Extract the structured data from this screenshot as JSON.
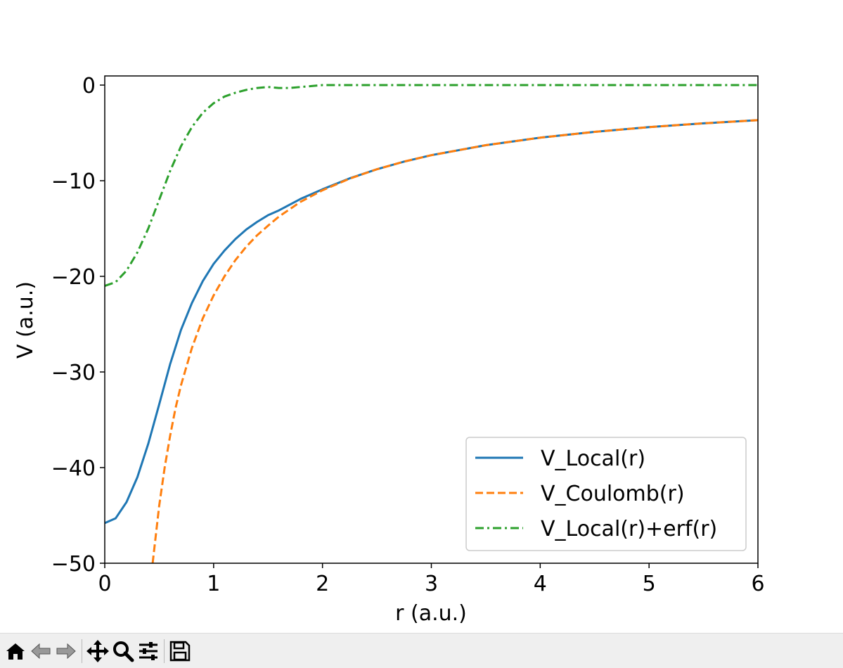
{
  "chart_data": {
    "type": "line",
    "xlabel": "r (a.u.)",
    "ylabel": "V (a.u.)",
    "xlim": [
      0,
      6
    ],
    "ylim": [
      -50,
      1
    ],
    "xticks": [
      0,
      1,
      2,
      3,
      4,
      5,
      6
    ],
    "xtick_labels": [
      "0",
      "1",
      "2",
      "3",
      "4",
      "5",
      "6"
    ],
    "yticks": [
      0,
      -10,
      -20,
      -30,
      -40,
      -50
    ],
    "ytick_labels": [
      "0",
      "−10",
      "−20",
      "−30",
      "−40",
      "−50"
    ],
    "grid": false,
    "legend_position": "lower-right",
    "series": [
      {
        "name": "V_Local(r)",
        "color": "#1f77b4",
        "style": "solid",
        "x": [
          0.0,
          0.1,
          0.2,
          0.3,
          0.4,
          0.5,
          0.6,
          0.7,
          0.8,
          0.9,
          1.0,
          1.1,
          1.2,
          1.3,
          1.4,
          1.5,
          1.6,
          1.8,
          2.0,
          2.25,
          2.5,
          2.75,
          3.0,
          3.5,
          4.0,
          4.5,
          5.0,
          5.5,
          6.0
        ],
        "y": [
          -45.8,
          -45.3,
          -43.6,
          -41.0,
          -37.5,
          -33.4,
          -29.2,
          -25.6,
          -22.8,
          -20.5,
          -18.7,
          -17.3,
          -16.1,
          -15.1,
          -14.3,
          -13.6,
          -13.1,
          -11.9,
          -10.9,
          -9.75,
          -8.8,
          -8.0,
          -7.33,
          -6.29,
          -5.5,
          -4.89,
          -4.4,
          -4.0,
          -3.67
        ]
      },
      {
        "name": "V_Coulomb(r)",
        "color": "#ff7f0e",
        "style": "dashed",
        "x": [
          0.44,
          0.5,
          0.55,
          0.6,
          0.65,
          0.7,
          0.8,
          0.9,
          1.0,
          1.1,
          1.2,
          1.3,
          1.4,
          1.5,
          1.6,
          1.8,
          2.0,
          2.25,
          2.5,
          2.75,
          3.0,
          3.5,
          4.0,
          4.5,
          5.0,
          5.5,
          6.0
        ],
        "y": [
          -50.0,
          -44.0,
          -40.0,
          -36.7,
          -33.8,
          -31.4,
          -27.5,
          -24.4,
          -22.0,
          -20.0,
          -18.3,
          -16.9,
          -15.7,
          -14.7,
          -13.75,
          -12.2,
          -11.0,
          -9.78,
          -8.8,
          -8.0,
          -7.33,
          -6.29,
          -5.5,
          -4.89,
          -4.4,
          -4.0,
          -3.67
        ]
      },
      {
        "name": "V_Local(r)+erf(r)",
        "color": "#2ca02c",
        "style": "dashdot",
        "x": [
          0.0,
          0.1,
          0.2,
          0.3,
          0.4,
          0.5,
          0.6,
          0.7,
          0.8,
          0.9,
          1.0,
          1.1,
          1.2,
          1.3,
          1.4,
          1.5,
          1.6,
          1.7,
          1.8,
          1.9,
          2.0,
          2.5,
          3.0,
          4.0,
          5.0,
          6.0
        ],
        "y": [
          -21.0,
          -20.6,
          -19.4,
          -17.5,
          -15.0,
          -12.0,
          -9.0,
          -6.4,
          -4.4,
          -2.9,
          -1.9,
          -1.2,
          -0.8,
          -0.5,
          -0.3,
          -0.2,
          -0.3,
          -0.3,
          -0.2,
          -0.1,
          0.0,
          0.0,
          0.0,
          0.0,
          0.0,
          0.0
        ]
      }
    ]
  },
  "toolbar": {
    "buttons": [
      "home-icon",
      "back-icon",
      "forward-icon",
      "pan-icon",
      "zoom-icon",
      "configure-icon",
      "save-icon"
    ]
  }
}
